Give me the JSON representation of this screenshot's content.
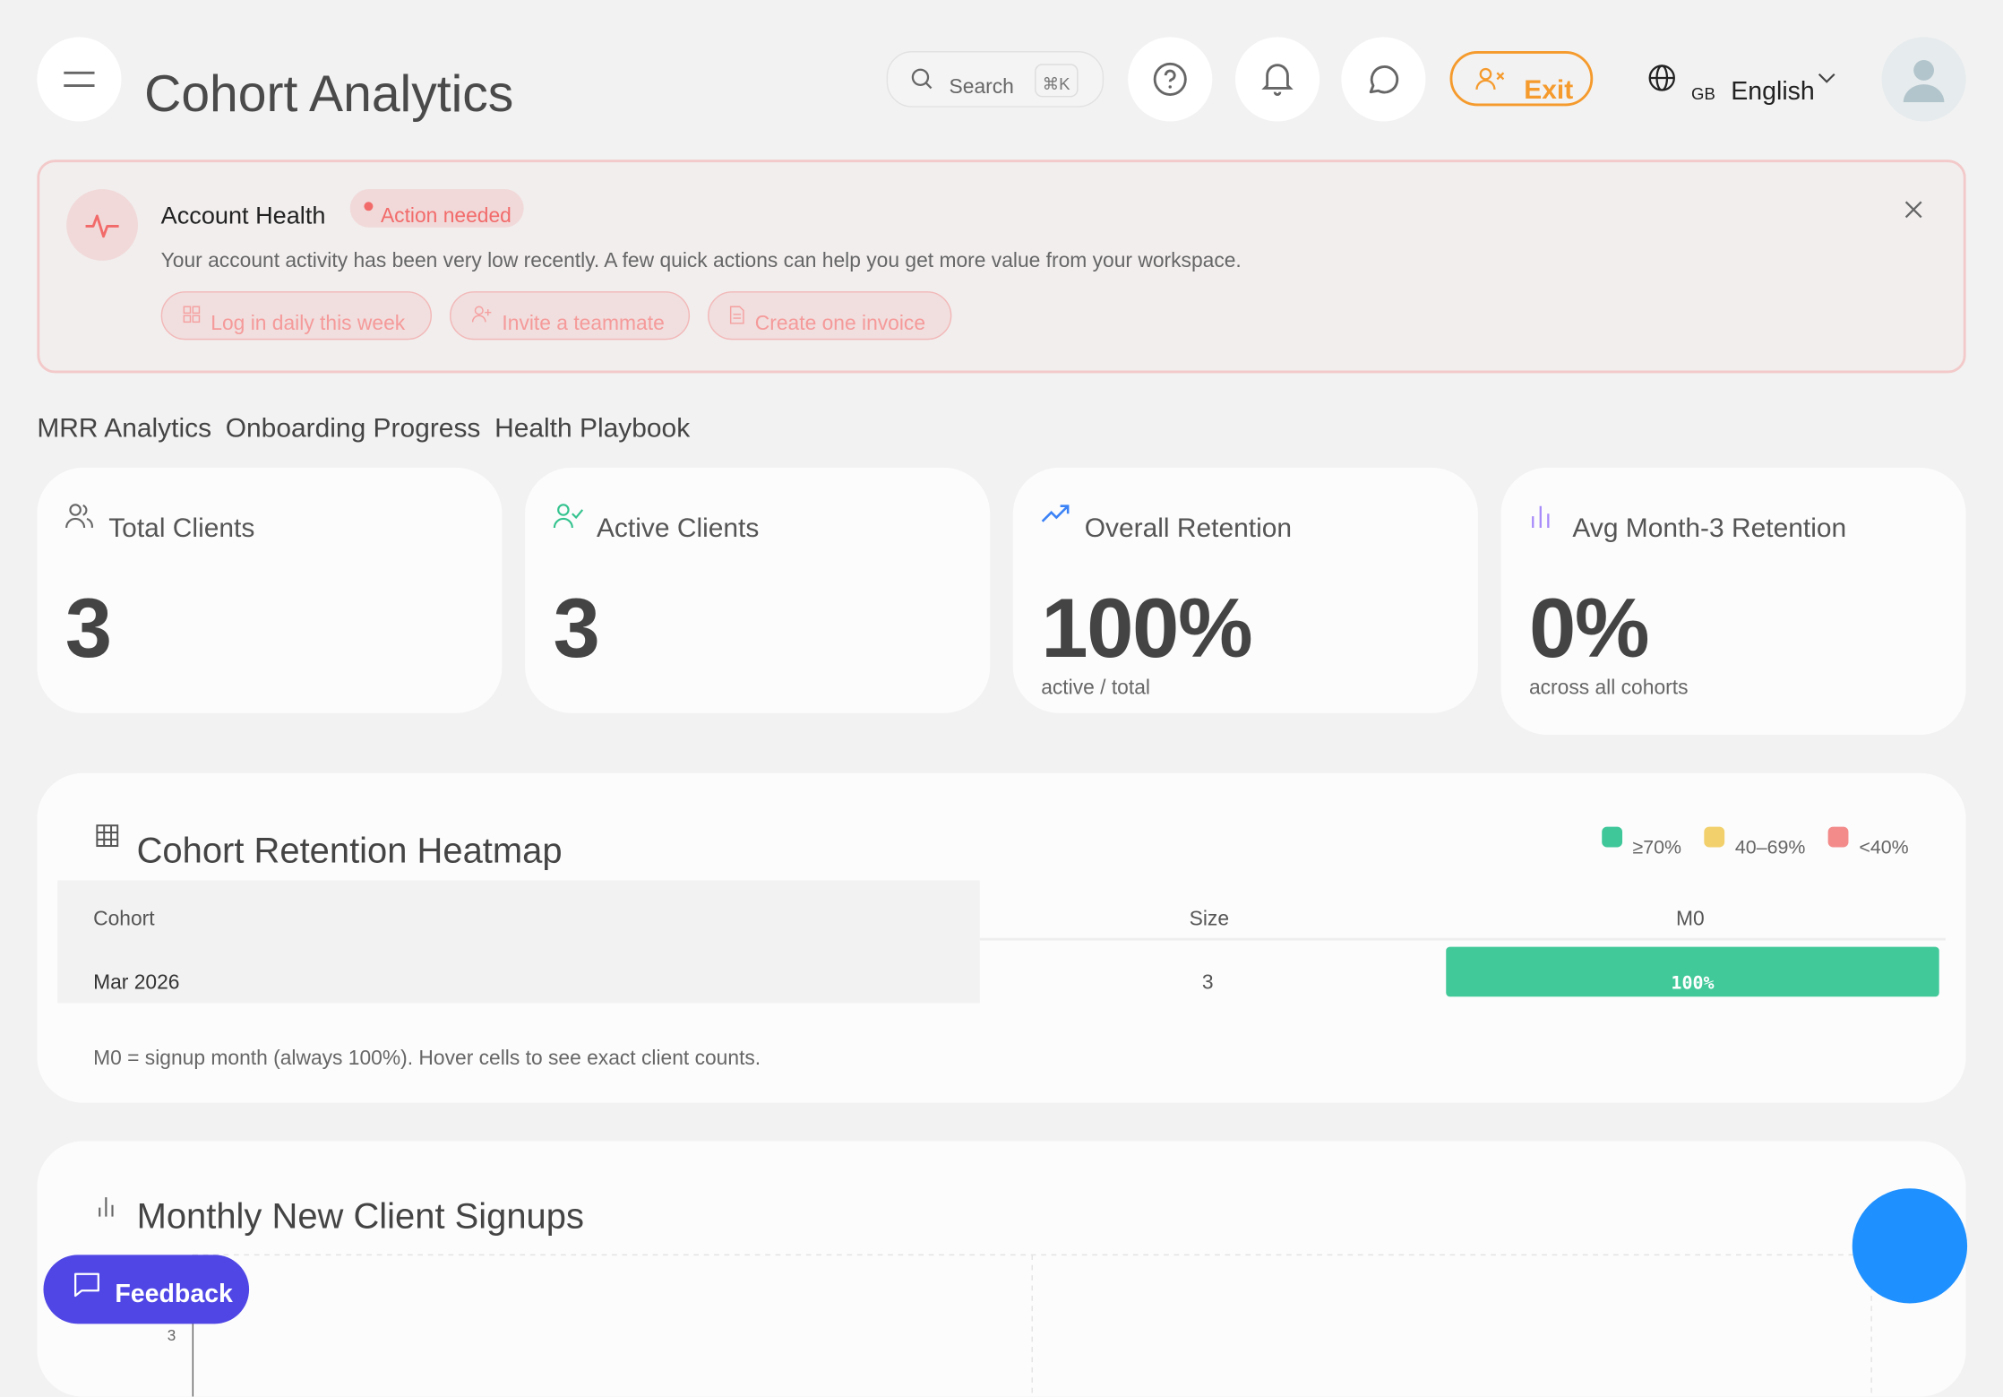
{
  "header": {
    "title": "Cohort Analytics",
    "search_placeholder": "Search",
    "search_shortcut": "⌘K",
    "exit_label": "Exit",
    "language_flag": "GB",
    "language": "English",
    "exit_color": "#f59a2c"
  },
  "banner": {
    "title": "Account Health",
    "badge": "Action needed",
    "message": "Your account activity has been very low recently. A few quick actions can help you get more value from your workspace.",
    "actions": [
      "Log in daily this week",
      "Invite a teammate",
      "Create one invoice"
    ],
    "accent": "#f26b6b"
  },
  "tabs": [
    "MRR Analytics",
    "Onboarding Progress",
    "Health Playbook"
  ],
  "kpis": [
    {
      "label": "Total Clients",
      "value": "3",
      "sub": "",
      "icon": "users-icon",
      "color": "#666666"
    },
    {
      "label": "Active Clients",
      "value": "3",
      "sub": "",
      "icon": "user-check-icon",
      "color": "#34c38f"
    },
    {
      "label": "Overall Retention",
      "value": "100%",
      "sub": "active / total",
      "icon": "trending-up-icon",
      "color": "#3b82f6"
    },
    {
      "label": "Avg Month-3 Retention",
      "value": "0%",
      "sub": "across all cohorts",
      "icon": "bar-chart-icon",
      "color": "#a78bfa"
    }
  ],
  "heatmap": {
    "title": "Cohort Retention Heatmap",
    "legend": [
      {
        "label": "≥70%",
        "color": "#3fc79a"
      },
      {
        "label": "40–69%",
        "color": "#f2d06b"
      },
      {
        "label": "<40%",
        "color": "#f38b8b"
      }
    ],
    "columns": [
      "Cohort",
      "Size",
      "M0"
    ],
    "rows": [
      {
        "cohort": "Mar 2026",
        "size": "3",
        "m0": "100%"
      }
    ],
    "note": "M0 = signup month (always 100%). Hover cells to see exact client counts."
  },
  "signups": {
    "title": "Monthly New Client Signups"
  },
  "chart_data": {
    "type": "bar",
    "title": "Monthly New Client Signups",
    "yticks": [
      "3"
    ],
    "grid": true
  },
  "feedback_label": "Feedback"
}
